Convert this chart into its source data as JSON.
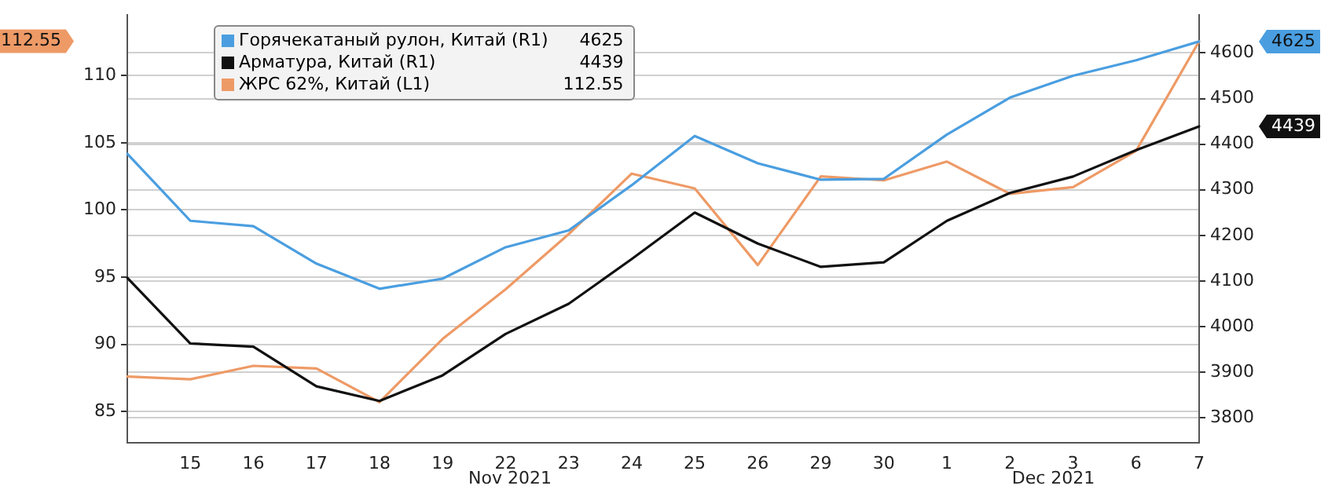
{
  "chart_data": {
    "type": "line",
    "categories": [
      null,
      "15",
      "16",
      "17",
      "18",
      "19",
      "22",
      "23",
      "24",
      "25",
      "26",
      "29",
      "30",
      "1",
      "2",
      "3",
      "6",
      "7"
    ],
    "series": [
      {
        "name": "Горячекатаный рулон, Китай (R1)",
        "color": "#4a9ee0",
        "axis": "y2",
        "values": [
          4379,
          4232,
          4220,
          4138,
          4083,
          4105,
          4174,
          4211,
          4310,
          4418,
          4358,
          4322,
          4324,
          4421,
          4502,
          4550,
          4584,
          4625
        ]
      },
      {
        "name": "Арматура, Китай (R1)",
        "color": "#111111",
        "axis": "y2",
        "values": [
          4107,
          3963,
          3956,
          3869,
          3837,
          3893,
          3984,
          4050,
          4148,
          4250,
          4182,
          4131,
          4141,
          4232,
          4293,
          4329,
          4387,
          4439
        ]
      },
      {
        "name": "ЖРС 62%, Китай (L1)",
        "color": "#ee9a66",
        "axis": "y",
        "values": [
          87.6,
          87.4,
          88.4,
          88.2,
          85.7,
          90.4,
          94.1,
          98.2,
          102.7,
          101.6,
          95.9,
          102.5,
          102.2,
          103.6,
          101.2,
          101.7,
          104.4,
          112.55
        ]
      }
    ],
    "ylim": [
      82.7,
      114.5
    ],
    "yticks": [
      85,
      90,
      95,
      100,
      105,
      110
    ],
    "y2lim": [
      3746,
      4683
    ],
    "y2ticks": [
      3800,
      3900,
      4000,
      4100,
      4200,
      4300,
      4400,
      4500,
      4600
    ],
    "grid": "y",
    "legend": "top left",
    "marker": "none",
    "line_style": "solid",
    "annotations": [
      "Nov 2021",
      "Dec 2021",
      "4625",
      "4439",
      "112.55"
    ]
  }
}
